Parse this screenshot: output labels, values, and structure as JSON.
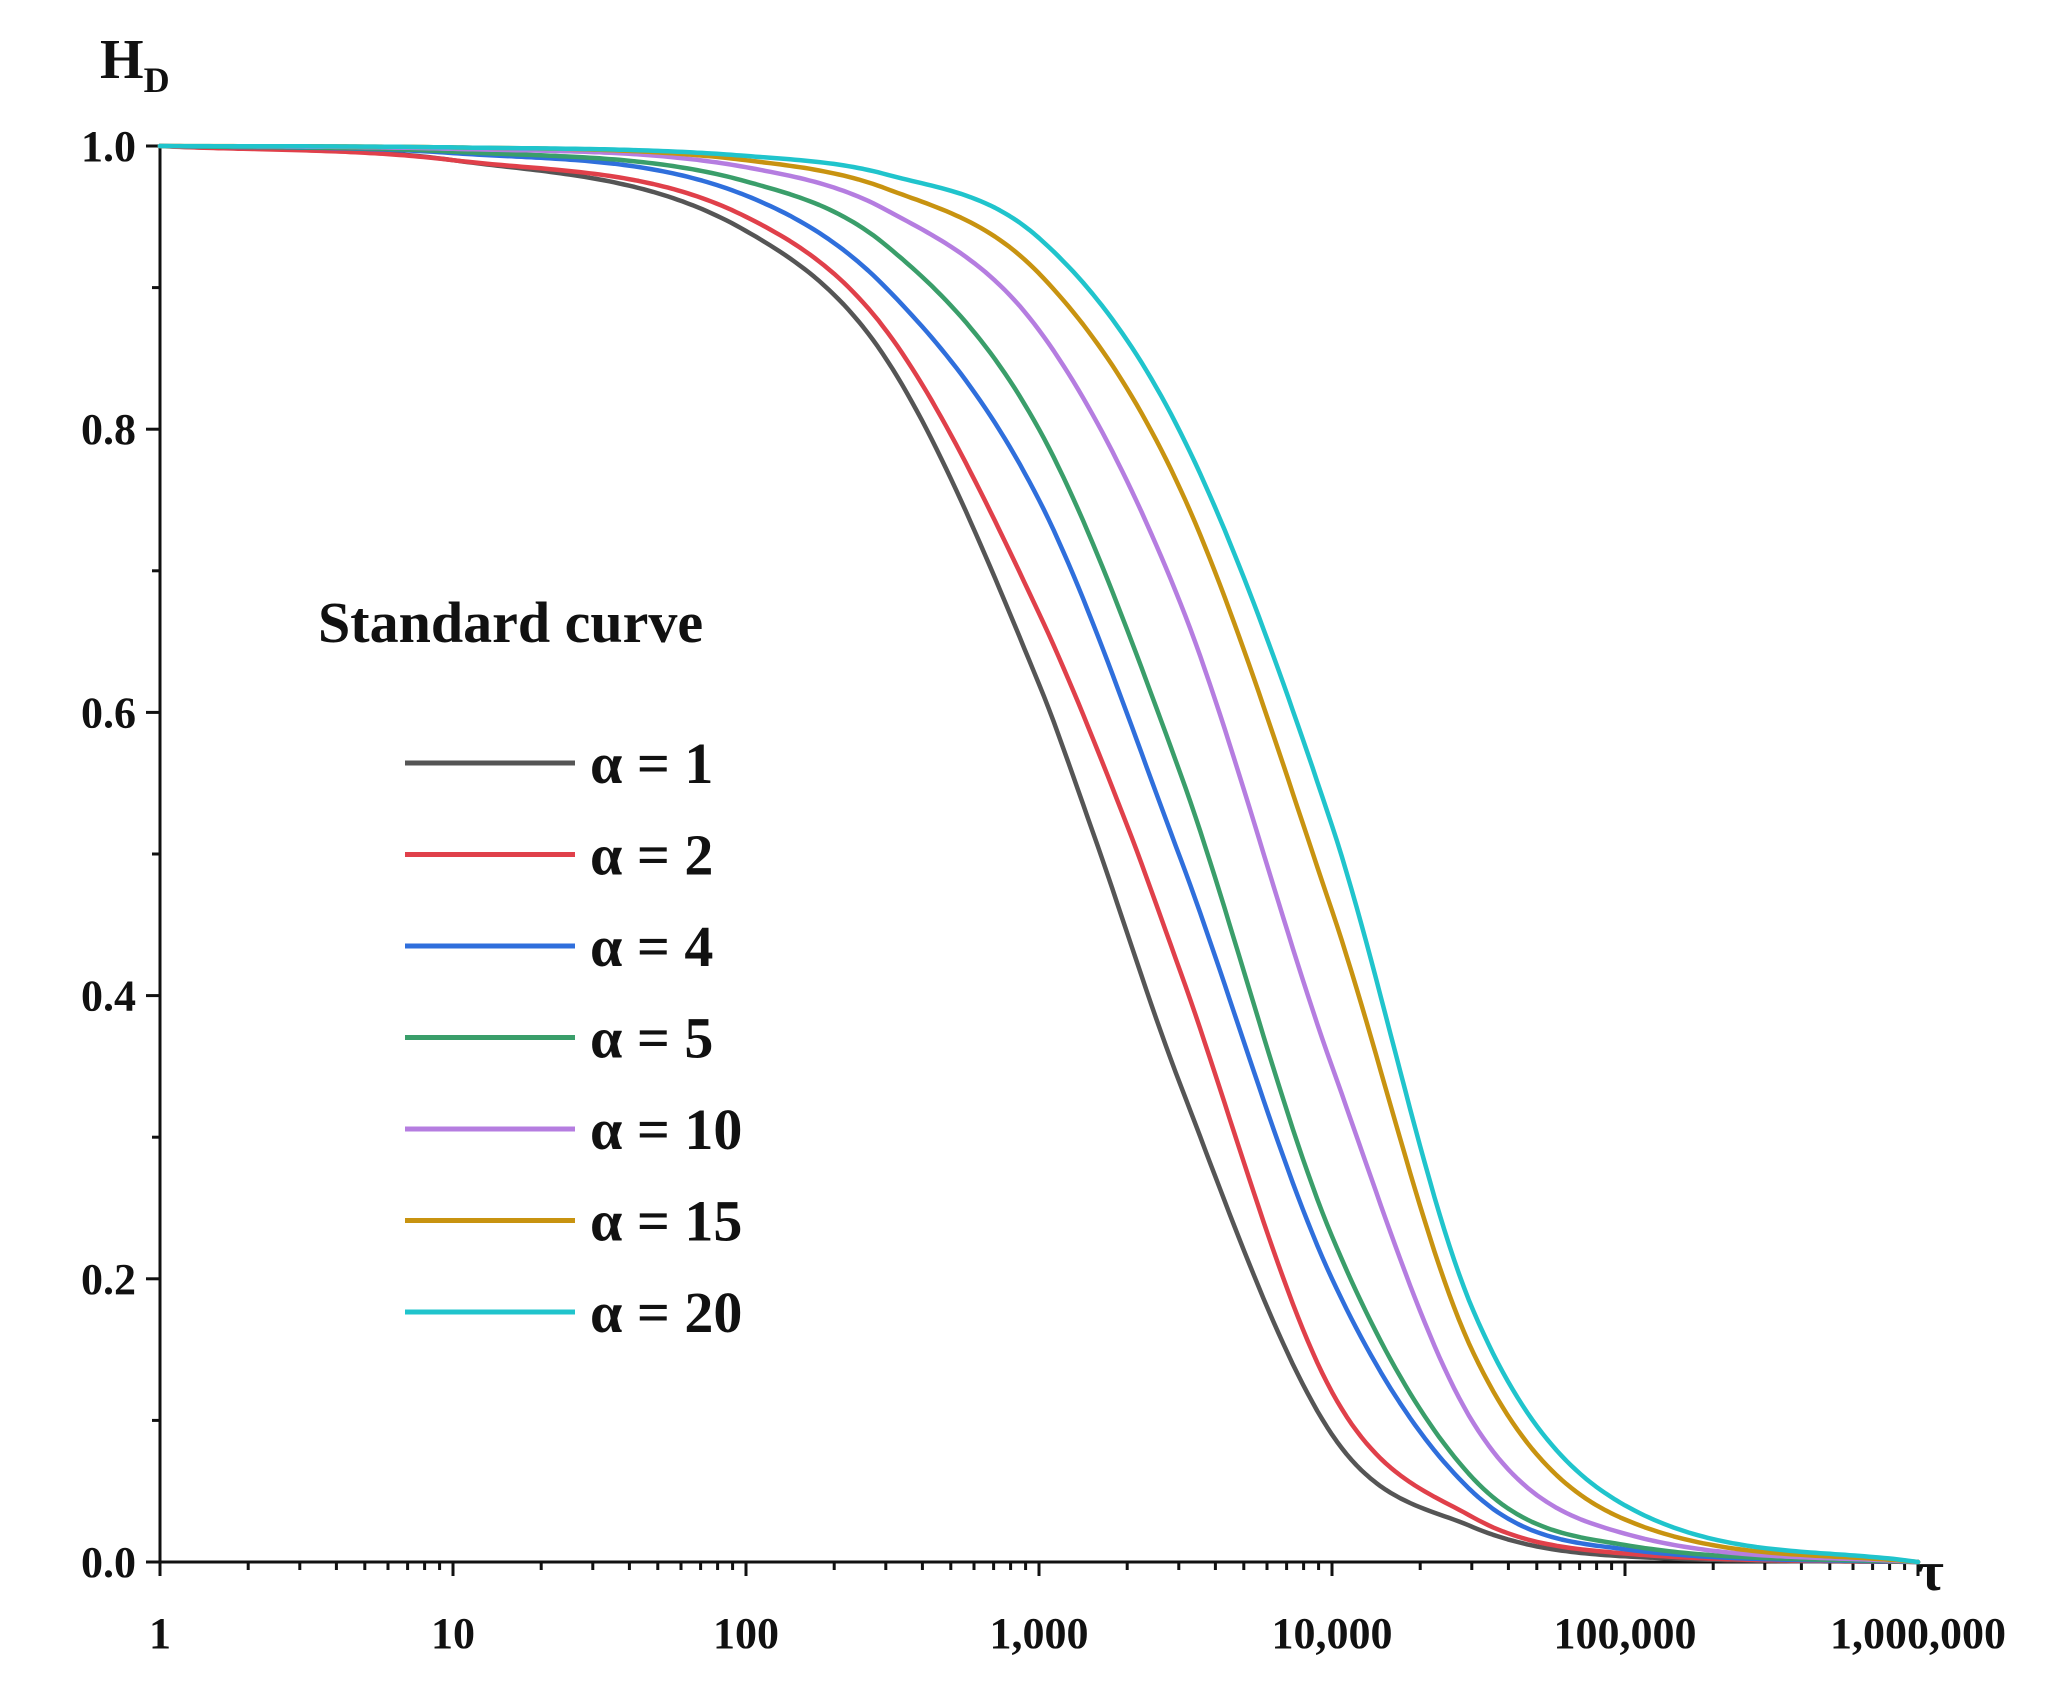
{
  "chart_data": {
    "type": "line",
    "title": "",
    "xlabel": "τ",
    "ylabel": "H",
    "ylabel_subscript": "D",
    "x_scale": "log",
    "xlim": [
      1,
      1000000
    ],
    "ylim": [
      0.0,
      1.0
    ],
    "x_ticks": [
      {
        "value": 1,
        "label": "1"
      },
      {
        "value": 10,
        "label": "10"
      },
      {
        "value": 100,
        "label": "100"
      },
      {
        "value": 1000,
        "label": "1,000"
      },
      {
        "value": 10000,
        "label": "10,000"
      },
      {
        "value": 100000,
        "label": "100,000"
      },
      {
        "value": 1000000,
        "label": "1,000,000"
      }
    ],
    "y_ticks": [
      {
        "value": 0.0,
        "label": "0.0"
      },
      {
        "value": 0.2,
        "label": "0.2"
      },
      {
        "value": 0.4,
        "label": "0.4"
      },
      {
        "value": 0.6,
        "label": "0.6"
      },
      {
        "value": 0.8,
        "label": "0.8"
      },
      {
        "value": 1.0,
        "label": "1.0"
      }
    ],
    "legend": {
      "title": "Standard curve",
      "placement": "center-left"
    },
    "series": [
      {
        "name": "α = 1",
        "color": "#555555",
        "x": [
          1,
          10,
          100,
          300,
          1000,
          1500,
          3000,
          10000,
          30000,
          100000,
          1000000
        ],
        "values": [
          1.0,
          0.99,
          0.94,
          0.85,
          0.62,
          0.52,
          0.34,
          0.09,
          0.025,
          0.004,
          0.0
        ]
      },
      {
        "name": "α = 2",
        "color": "#e0404a",
        "x": [
          1,
          10,
          100,
          300,
          1000,
          2000,
          3000,
          10000,
          30000,
          100000,
          1000000
        ],
        "values": [
          1.0,
          0.99,
          0.95,
          0.87,
          0.67,
          0.52,
          0.42,
          0.12,
          0.032,
          0.006,
          0.0
        ]
      },
      {
        "name": "α = 4",
        "color": "#2f6fdc",
        "x": [
          1,
          10,
          100,
          300,
          1000,
          3000,
          10000,
          30000,
          100000,
          1000000
        ],
        "values": [
          1.0,
          0.995,
          0.965,
          0.9,
          0.75,
          0.5,
          0.2,
          0.05,
          0.009,
          0.0
        ]
      },
      {
        "name": "α = 5",
        "color": "#3a9e6a",
        "x": [
          1,
          10,
          100,
          300,
          1000,
          3000,
          10000,
          30000,
          100000,
          1000000
        ],
        "values": [
          1.0,
          0.996,
          0.975,
          0.93,
          0.8,
          0.56,
          0.23,
          0.06,
          0.012,
          0.0
        ]
      },
      {
        "name": "α = 10",
        "color": "#b57de0",
        "x": [
          1,
          10,
          100,
          300,
          1000,
          3000,
          10000,
          30000,
          100000,
          1000000
        ],
        "values": [
          1.0,
          0.998,
          0.985,
          0.955,
          0.87,
          0.68,
          0.35,
          0.1,
          0.02,
          0.0
        ]
      },
      {
        "name": "α = 15",
        "color": "#c89310",
        "x": [
          1,
          10,
          100,
          300,
          1000,
          3000,
          10000,
          30000,
          100000,
          1000000
        ],
        "values": [
          1.0,
          0.999,
          0.99,
          0.97,
          0.91,
          0.76,
          0.46,
          0.15,
          0.03,
          0.0
        ]
      },
      {
        "name": "α = 20",
        "color": "#20c4cc",
        "x": [
          1,
          10,
          100,
          300,
          1000,
          3000,
          10000,
          30000,
          100000,
          1000000
        ],
        "values": [
          1.0,
          0.999,
          0.993,
          0.98,
          0.935,
          0.8,
          0.52,
          0.18,
          0.04,
          0.0
        ]
      }
    ]
  }
}
